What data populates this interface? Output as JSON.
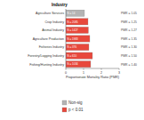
{
  "chart_data": {
    "type": "bar",
    "orientation": "horizontal",
    "title": "Industry",
    "x_label": "Proportionate Mortality Ratio (PMR)",
    "categories": [
      "Agriculture Services",
      "Crop Industry",
      "Animal Industry",
      "Agriculture Production",
      "Fisheries Industry",
      "Forestry/Logging Industry",
      "Fishing/Hunting Industry"
    ],
    "values": [
      1.05,
      1.25,
      1.27,
      1.35,
      1.3,
      1.5,
      1.4
    ],
    "value_labels": [
      "PMR = 1.05",
      "PMR = 1.25",
      "PMR = 1.27",
      "PMR = 1.35",
      "PMR = 1.30",
      "PMR = 1.50",
      "PMR = 1.40"
    ],
    "count_labels": [
      "N = 14",
      "N = 2085",
      "N = 1427",
      "N = 1983",
      "N = 376",
      "N = 610",
      "N = 1034"
    ],
    "colors": [
      "#b4b4b4",
      "#e8483c",
      "#e8483c",
      "#e8483c",
      "#e8483c",
      "#e8483c",
      "#e8483c"
    ],
    "xlim": [
      0,
      3
    ],
    "xticks": [
      0,
      1,
      2,
      3
    ],
    "data_labels": true,
    "legend_items": [
      {
        "name": "Non-sig",
        "color": "#b4b4b4"
      },
      {
        "name": "p < 0.01",
        "color": "#e8483c"
      }
    ]
  }
}
